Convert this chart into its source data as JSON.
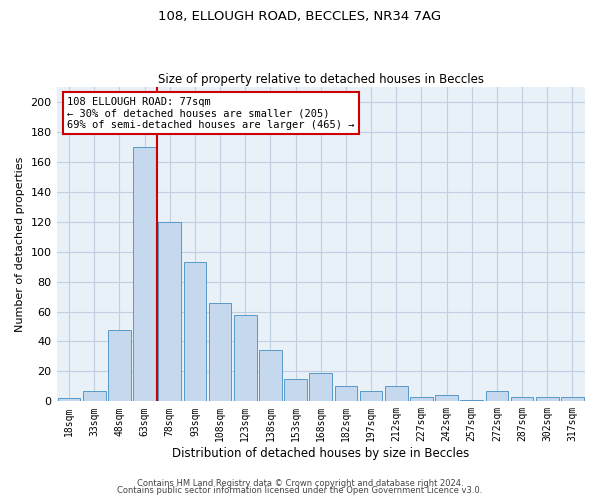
{
  "title1": "108, ELLOUGH ROAD, BECCLES, NR34 7AG",
  "title2": "Size of property relative to detached houses in Beccles",
  "xlabel": "Distribution of detached houses by size in Beccles",
  "ylabel": "Number of detached properties",
  "categories": [
    "18sqm",
    "33sqm",
    "48sqm",
    "63sqm",
    "78sqm",
    "93sqm",
    "108sqm",
    "123sqm",
    "138sqm",
    "153sqm",
    "168sqm",
    "182sqm",
    "197sqm",
    "212sqm",
    "227sqm",
    "242sqm",
    "257sqm",
    "272sqm",
    "287sqm",
    "302sqm",
    "317sqm"
  ],
  "values": [
    2,
    7,
    48,
    170,
    120,
    93,
    66,
    58,
    34,
    15,
    19,
    10,
    7,
    10,
    3,
    4,
    1,
    7,
    3,
    3,
    3
  ],
  "bar_color": "#c5d8ed",
  "bar_edge_color": "#5899c8",
  "annotation_text": "108 ELLOUGH ROAD: 77sqm\n← 30% of detached houses are smaller (205)\n69% of semi-detached houses are larger (465) →",
  "annotation_box_color": "#ffffff",
  "annotation_box_edge_color": "#cc0000",
  "red_line_color": "#cc0000",
  "ylim": [
    0,
    210
  ],
  "yticks": [
    0,
    20,
    40,
    60,
    80,
    100,
    120,
    140,
    160,
    180,
    200
  ],
  "grid_color": "#c0d0e0",
  "background_color": "#e8f0f8",
  "footer1": "Contains HM Land Registry data © Crown copyright and database right 2024.",
  "footer2": "Contains public sector information licensed under the Open Government Licence v3.0."
}
